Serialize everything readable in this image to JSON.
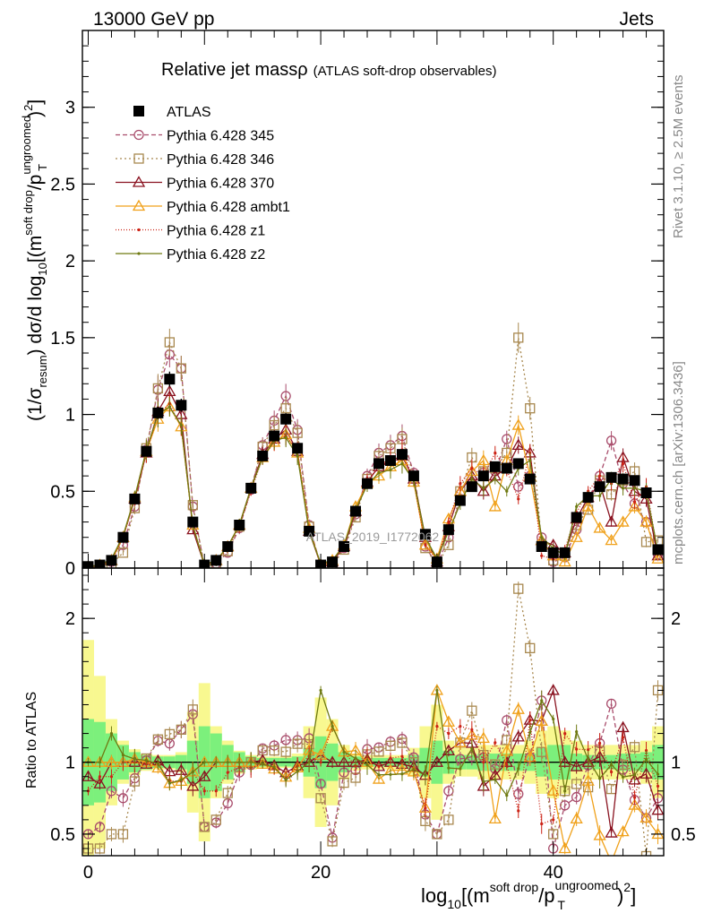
{
  "header": {
    "energy_label": "13000 GeV pp",
    "category_label": "Jets",
    "title_main": "Relative jet mass",
    "title_rho": "ρ",
    "title_sub": "(ATLAS soft-drop observables)",
    "watermark": "ATLAS_2019_I1772062",
    "side_rivet": "Rivet 3.1.10, ≥ 2.5M events",
    "side_mcplots": "mcplots.cern.ch [arXiv:1306.3436]",
    "ratio_ylabel": "Ratio to ATLAS"
  },
  "axis_labels": {
    "y_prefix": "(1/σ",
    "y_prefix_sub": "resum",
    "y_mid": ") dσ/d log",
    "y_mid_sub": "10",
    "y_open": "[(m",
    "y_m_sup": "soft drop",
    "y_slash": "/p",
    "y_p_sup": "ungroomed",
    "y_p_sub": "T",
    "y_close": ")",
    "y_sq": "2",
    "y_end": "]",
    "x_prefix": "log",
    "x_prefix_sub": "10",
    "x_open": "[(m",
    "x_m_sup": "soft drop",
    "x_slash": "/p",
    "x_p_sup": "ungroomed",
    "x_p_sub": "T",
    "x_close": ")",
    "x_sq": "2",
    "x_end": "]"
  },
  "colors": {
    "data": "#000000",
    "s345": "#a94d6c",
    "s346": "#a8884f",
    "s370": "#8a1320",
    "ambt1": "#f0a11b",
    "z1": "#cc2215",
    "z2": "#6f7a12",
    "band_inner": "#7cf07c",
    "band_outer": "#f8f890"
  },
  "chart_data": {
    "type": "line",
    "xlim": [
      -0.5,
      49.5
    ],
    "main_ylim": [
      0,
      3.5
    ],
    "ratio_ylim": [
      0.35,
      2.35
    ],
    "main_yticks": [
      0,
      0.5,
      1,
      1.5,
      2,
      2.5,
      3
    ],
    "main_ytick_labels": [
      "0",
      "0.5",
      "1",
      "1.5",
      "2",
      "2.5",
      "3"
    ],
    "ratio_yticks": [
      0.5,
      1,
      2
    ],
    "ratio_ytick_labels": [
      "0.5",
      "1",
      "2"
    ],
    "xticks": [
      0,
      20,
      40
    ],
    "xtick_labels": [
      "0",
      "20",
      "40"
    ],
    "data": {
      "name": "ATLAS",
      "x": [
        0,
        1,
        2,
        3,
        4,
        5,
        6,
        7,
        8,
        9,
        10,
        11,
        12,
        13,
        14,
        15,
        16,
        17,
        18,
        19,
        20,
        21,
        22,
        23,
        24,
        25,
        26,
        27,
        28,
        29,
        30,
        31,
        32,
        33,
        34,
        35,
        36,
        37,
        38,
        39,
        40,
        41,
        42,
        43,
        44,
        45,
        46,
        47,
        48,
        49
      ],
      "y": [
        0.01,
        0.02,
        0.05,
        0.2,
        0.45,
        0.76,
        1.01,
        1.23,
        1.06,
        0.3,
        0.02,
        0.05,
        0.14,
        0.28,
        0.52,
        0.73,
        0.86,
        0.97,
        0.78,
        0.24,
        0.02,
        0.04,
        0.14,
        0.37,
        0.55,
        0.68,
        0.7,
        0.74,
        0.6,
        0.22,
        0.04,
        0.25,
        0.44,
        0.53,
        0.6,
        0.66,
        0.65,
        0.68,
        0.58,
        0.14,
        0.1,
        0.1,
        0.33,
        0.46,
        0.53,
        0.59,
        0.58,
        0.57,
        0.49,
        0.12
      ]
    },
    "series": [
      {
        "name": "Pythia 6.428 345",
        "key": "s345",
        "dash": "5,3",
        "marker": "circle",
        "y": [
          0.005,
          0.011,
          0.04,
          0.15,
          0.4,
          0.77,
          1.16,
          1.39,
          1.3,
          0.4,
          0.011,
          0.029,
          0.1,
          0.26,
          0.51,
          0.8,
          0.96,
          1.12,
          0.9,
          0.28,
          0.017,
          0.019,
          0.13,
          0.35,
          0.6,
          0.75,
          0.8,
          0.86,
          0.62,
          0.14,
          0.02,
          0.2,
          0.45,
          0.55,
          0.62,
          0.63,
          0.84,
          0.53,
          0.6,
          0.2,
          0.04,
          0.07,
          0.25,
          0.45,
          0.6,
          0.83,
          0.55,
          0.42,
          0.3,
          0.09
        ]
      },
      {
        "name": "Pythia 6.428 346",
        "key": "s346",
        "dash": "2,3",
        "marker": "square",
        "y": [
          0.004,
          0.008,
          0.025,
          0.1,
          0.39,
          0.78,
          1.17,
          1.47,
          1.3,
          0.41,
          0.011,
          0.03,
          0.11,
          0.27,
          0.52,
          0.79,
          0.93,
          1.04,
          0.88,
          0.27,
          0.015,
          0.018,
          0.12,
          0.33,
          0.58,
          0.73,
          0.78,
          0.84,
          0.6,
          0.13,
          0.02,
          0.15,
          0.5,
          0.72,
          0.63,
          0.65,
          0.75,
          1.5,
          1.04,
          0.15,
          0.05,
          0.08,
          0.28,
          0.38,
          0.57,
          0.48,
          0.57,
          0.63,
          0.17,
          0.18
        ]
      },
      {
        "name": "Pythia 6.428 370",
        "key": "s370",
        "dash": "",
        "marker": "triangle",
        "y": [
          0.009,
          0.017,
          0.05,
          0.2,
          0.45,
          0.75,
          1.02,
          1.15,
          1.0,
          0.25,
          0.018,
          0.05,
          0.14,
          0.28,
          0.52,
          0.74,
          0.84,
          0.9,
          0.76,
          0.24,
          0.021,
          0.04,
          0.14,
          0.37,
          0.56,
          0.66,
          0.7,
          0.73,
          0.58,
          0.2,
          0.04,
          0.27,
          0.5,
          0.6,
          0.5,
          0.6,
          0.65,
          0.8,
          0.75,
          0.18,
          0.15,
          0.1,
          0.32,
          0.46,
          0.55,
          0.3,
          0.72,
          0.5,
          0.45,
          0.08
        ]
      },
      {
        "name": "Pythia 6.428 ambt1",
        "key": "ambt1",
        "dash": "",
        "marker": "triangle",
        "y": [
          0.01,
          0.02,
          0.05,
          0.2,
          0.46,
          0.76,
          0.97,
          1.05,
          0.92,
          0.28,
          0.02,
          0.05,
          0.14,
          0.28,
          0.52,
          0.72,
          0.82,
          0.87,
          0.75,
          0.26,
          0.021,
          0.05,
          0.15,
          0.4,
          0.55,
          0.6,
          0.66,
          0.7,
          0.56,
          0.15,
          0.06,
          0.32,
          0.5,
          0.63,
          0.7,
          0.4,
          0.7,
          0.93,
          0.6,
          0.18,
          0.08,
          0.04,
          0.2,
          0.4,
          0.26,
          0.18,
          0.3,
          0.4,
          0.3,
          0.06
        ]
      },
      {
        "name": "Pythia 6.428 z1",
        "key": "z1",
        "dash": "1,2",
        "marker": "dot",
        "y": [
          0.008,
          0.018,
          0.045,
          0.2,
          0.45,
          0.75,
          1.0,
          1.07,
          0.92,
          0.28,
          0.016,
          0.04,
          0.13,
          0.27,
          0.5,
          0.72,
          0.82,
          0.86,
          0.76,
          0.25,
          0.02,
          0.05,
          0.15,
          0.36,
          0.57,
          0.66,
          0.72,
          0.77,
          0.57,
          0.15,
          0.05,
          0.3,
          0.55,
          0.65,
          0.6,
          0.75,
          0.64,
          0.45,
          0.75,
          0.08,
          0.06,
          0.12,
          0.36,
          0.5,
          0.6,
          0.55,
          0.68,
          0.43,
          0.53,
          0.1
        ]
      },
      {
        "name": "Pythia 6.428 z2",
        "key": "z2",
        "dash": "",
        "marker": "dot",
        "y": [
          0.01,
          0.02,
          0.06,
          0.21,
          0.46,
          0.77,
          1.0,
          1.05,
          0.93,
          0.28,
          0.02,
          0.05,
          0.14,
          0.28,
          0.52,
          0.72,
          0.83,
          0.85,
          0.73,
          0.24,
          0.03,
          0.05,
          0.15,
          0.38,
          0.54,
          0.62,
          0.64,
          0.68,
          0.57,
          0.2,
          0.06,
          0.24,
          0.42,
          0.58,
          0.52,
          0.58,
          0.5,
          0.65,
          0.7,
          0.2,
          0.13,
          0.08,
          0.4,
          0.47,
          0.47,
          0.58,
          0.52,
          0.52,
          0.5,
          0.11
        ]
      }
    ],
    "band_inner": [
      0.3,
      0.28,
      0.2,
      0.12,
      0.07,
      0.05,
      0.04,
      0.04,
      0.05,
      0.15,
      0.25,
      0.2,
      0.12,
      0.07,
      0.04,
      0.03,
      0.03,
      0.03,
      0.04,
      0.1,
      0.18,
      0.13,
      0.07,
      0.04,
      0.03,
      0.03,
      0.03,
      0.03,
      0.05,
      0.1,
      0.15,
      0.08,
      0.05,
      0.05,
      0.06,
      0.06,
      0.06,
      0.06,
      0.06,
      0.1,
      0.12,
      0.12,
      0.06,
      0.05,
      0.05,
      0.05,
      0.06,
      0.06,
      0.07,
      0.12
    ],
    "band_outer": [
      0.85,
      0.6,
      0.3,
      0.15,
      0.09,
      0.06,
      0.05,
      0.05,
      0.07,
      0.35,
      0.55,
      0.25,
      0.15,
      0.08,
      0.05,
      0.04,
      0.04,
      0.04,
      0.06,
      0.25,
      0.45,
      0.3,
      0.12,
      0.06,
      0.05,
      0.05,
      0.05,
      0.05,
      0.1,
      0.25,
      0.4,
      0.15,
      0.1,
      0.1,
      0.12,
      0.12,
      0.12,
      0.12,
      0.15,
      0.22,
      0.25,
      0.22,
      0.15,
      0.12,
      0.12,
      0.12,
      0.12,
      0.12,
      0.15,
      0.25
    ]
  }
}
